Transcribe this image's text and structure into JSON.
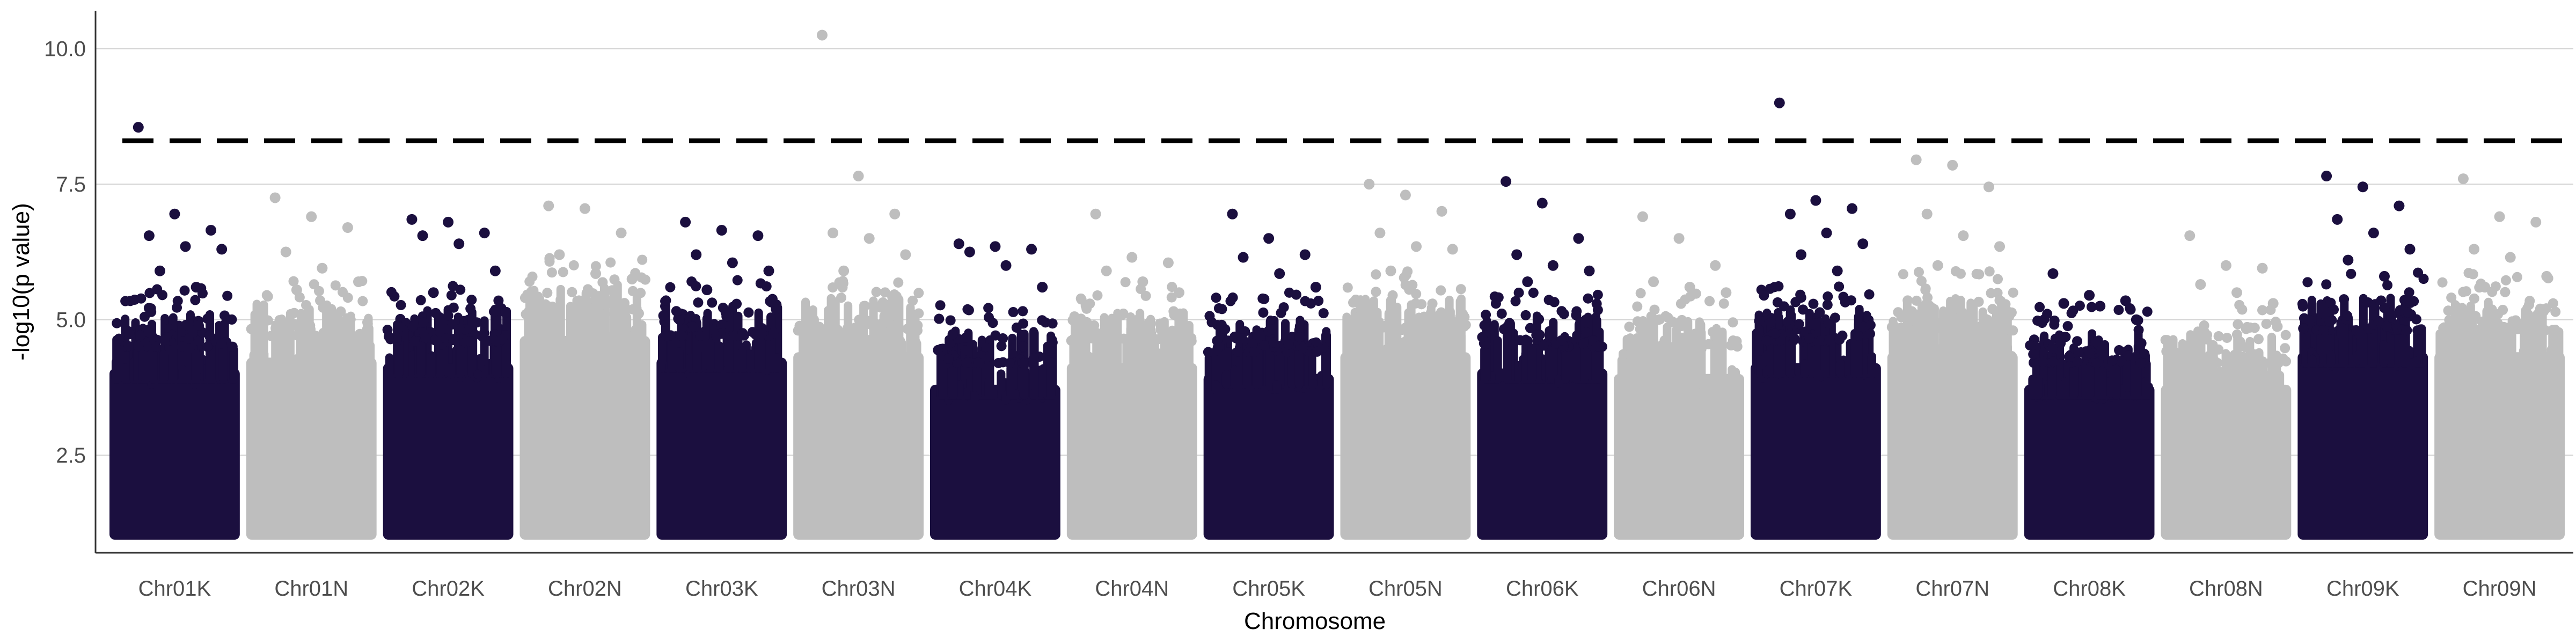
{
  "chart_data": {
    "type": "scatter",
    "title": "",
    "xlabel": "Chromosome",
    "ylabel": "-log10(p value)",
    "ylim": [
      0.7,
      10.7
    ],
    "y_ticks": [
      2.5,
      5.0,
      7.5,
      10.0
    ],
    "y_tick_labels": [
      "2.5",
      "5.0",
      "7.5",
      "10.0"
    ],
    "grid": "horizontal major lines only",
    "legend": "none",
    "threshold": {
      "value": 8.3,
      "style": "dashed",
      "color": "#000000"
    },
    "colors": {
      "odd": "#1b0f3f",
      "even": "#bebebe",
      "threshold": "#000000",
      "grid": "#d3d3d3"
    },
    "point_floor": 1.0,
    "chromosomes": [
      {
        "name": "Chr01K",
        "top_points": [
          8.55,
          6.95,
          6.65,
          6.55,
          6.35,
          6.3,
          5.9,
          5.6
        ],
        "band_top": 5.0
      },
      {
        "name": "Chr01N",
        "top_points": [
          7.25,
          6.9,
          6.7,
          6.25,
          5.95,
          5.7,
          5.55
        ],
        "band_top": 5.2
      },
      {
        "name": "Chr02K",
        "top_points": [
          6.85,
          6.8,
          6.6,
          6.55,
          6.4,
          5.9,
          5.5
        ],
        "band_top": 5.1
      },
      {
        "name": "Chr02N",
        "top_points": [
          7.1,
          7.05,
          6.6,
          6.2,
          5.85,
          5.75
        ],
        "band_top": 5.6
      },
      {
        "name": "Chr03K",
        "top_points": [
          6.8,
          6.65,
          6.55,
          6.2,
          6.05,
          5.9,
          5.55
        ],
        "band_top": 5.2
      },
      {
        "name": "Chr03N",
        "top_points": [
          10.25,
          7.65,
          6.95,
          6.6,
          6.5,
          6.2,
          5.9
        ],
        "band_top": 5.3
      },
      {
        "name": "Chr04K",
        "top_points": [
          6.4,
          6.35,
          6.3,
          6.25,
          6.0,
          5.6
        ],
        "band_top": 4.7
      },
      {
        "name": "Chr04N",
        "top_points": [
          6.95,
          6.15,
          6.05,
          5.9,
          5.7,
          5.5
        ],
        "band_top": 5.1
      },
      {
        "name": "Chr05K",
        "top_points": [
          6.95,
          6.5,
          6.2,
          6.15,
          5.85,
          5.6
        ],
        "band_top": 4.9
      },
      {
        "name": "Chr05N",
        "top_points": [
          7.5,
          7.3,
          7.0,
          6.6,
          6.35,
          6.3,
          5.9
        ],
        "band_top": 5.3
      },
      {
        "name": "Chr06K",
        "top_points": [
          7.55,
          7.15,
          6.5,
          6.2,
          6.0,
          5.9,
          5.7
        ],
        "band_top": 5.0
      },
      {
        "name": "Chr06N",
        "top_points": [
          6.9,
          6.5,
          6.0,
          5.7,
          5.6,
          5.5
        ],
        "band_top": 4.9
      },
      {
        "name": "Chr07K",
        "top_points": [
          9.0,
          7.2,
          7.05,
          6.95,
          6.6,
          6.4,
          6.2,
          5.9
        ],
        "band_top": 5.1
      },
      {
        "name": "Chr07N",
        "top_points": [
          7.95,
          7.85,
          7.45,
          6.95,
          6.55,
          6.35,
          6.0
        ],
        "band_top": 5.3
      },
      {
        "name": "Chr08K",
        "top_points": [
          5.85,
          5.45,
          5.35,
          5.3,
          5.25,
          5.0
        ],
        "band_top": 4.7
      },
      {
        "name": "Chr08N",
        "top_points": [
          6.55,
          6.0,
          5.95,
          5.65,
          5.5,
          5.3
        ],
        "band_top": 4.7
      },
      {
        "name": "Chr09K",
        "top_points": [
          7.65,
          7.45,
          7.1,
          6.85,
          6.6,
          6.3,
          6.1,
          5.8
        ],
        "band_top": 5.3
      },
      {
        "name": "Chr09N",
        "top_points": [
          7.6,
          6.9,
          6.8,
          6.3,
          6.15,
          5.8,
          5.6
        ],
        "band_top": 5.3
      }
    ]
  }
}
